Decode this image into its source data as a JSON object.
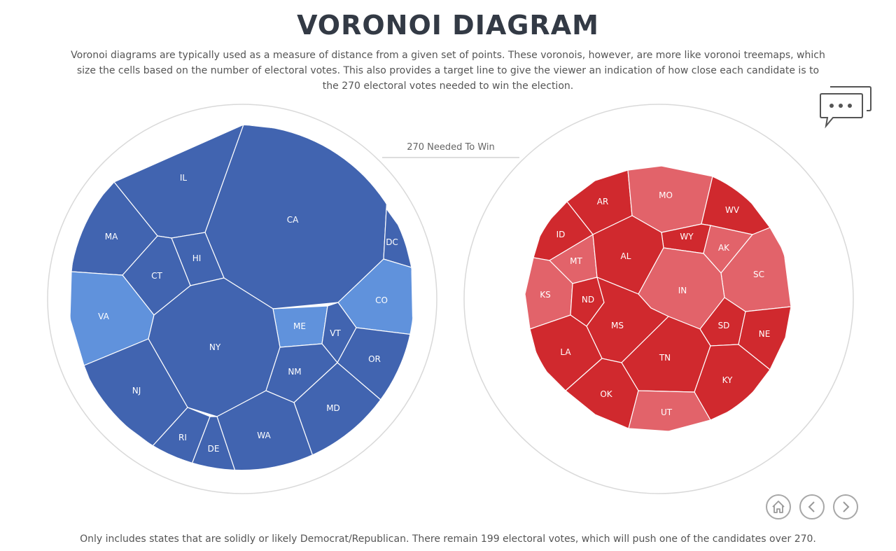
{
  "header": {
    "title": "VORONOI DIAGRAM",
    "description": "Voronoi diagrams are typically used as a measure of distance from a given set of points. These voronois, however, are more like voronoi treemaps, which size the cells based on the number of electoral votes. This also provides a target line to give the viewer an indication of how close each candidate is to the 270 electoral votes needed to win the election."
  },
  "target_label": "270 Needed To Win",
  "footnote": "Only includes states that are solidly or likely Democrat/Republican. There remain 199 electoral votes, which will push one of the candidates over 270.",
  "colors": {
    "dem_solid": "#4164b0",
    "dem_likely": "#6092dc",
    "rep_solid": "#d0292e",
    "rep_likely": "#e2636a",
    "outline": "#d9d9d9"
  },
  "icons": {
    "chat": "chat-bubbles-icon",
    "home": "home-icon",
    "prev": "chevron-left-icon",
    "next": "chevron-right-icon"
  },
  "democrat": {
    "states": [
      "IL",
      "CA",
      "MA",
      "HI",
      "CT",
      "DC",
      "VA",
      "CO",
      "ME",
      "NY",
      "VT",
      "OR",
      "NM",
      "NJ",
      "MD",
      "RI",
      "WA",
      "DE"
    ],
    "likely": [
      "VA",
      "CO",
      "ME"
    ]
  },
  "republican": {
    "states": [
      "AR",
      "MO",
      "WV",
      "ID",
      "WY",
      "AK",
      "MT",
      "AL",
      "SC",
      "KS",
      "IN",
      "ND",
      "SD",
      "NE",
      "MS",
      "LA",
      "TN",
      "KY",
      "OK",
      "UT"
    ],
    "likely": [
      "MO",
      "AK",
      "MT",
      "KS",
      "IN",
      "SC",
      "UT"
    ]
  }
}
